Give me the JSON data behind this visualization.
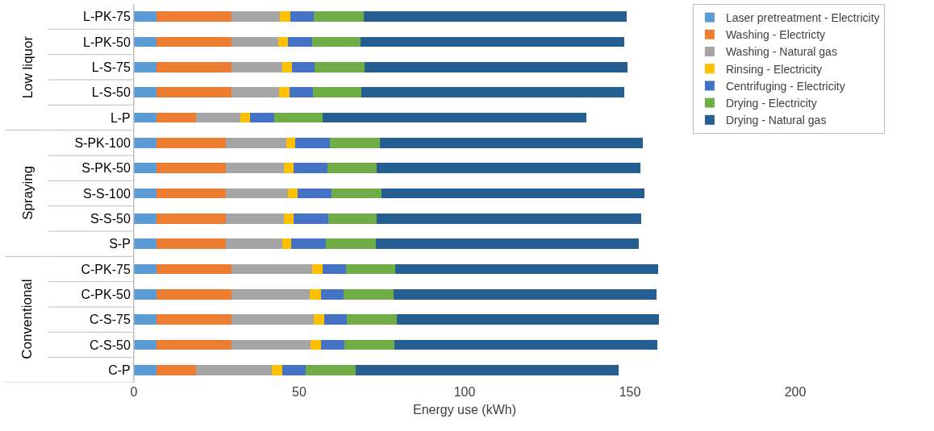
{
  "chart_data": {
    "type": "bar",
    "orientation": "horizontal",
    "stacked": true,
    "categories": [
      "L-PK-75",
      "L-PK-50",
      "L-S-75",
      "L-S-50",
      "L-P",
      "S-PK-100",
      "S-PK-50",
      "S-S-100",
      "S-S-50",
      "S-P",
      "C-PK-75",
      "C-PK-50",
      "C-S-75",
      "C-S-50",
      "C-P"
    ],
    "series": [
      {
        "name": "Laser pretreatment - Electricity",
        "color": "#5b9bd5",
        "values": [
          6.8,
          6.8,
          6.8,
          6.8,
          6.8,
          6.8,
          6.8,
          6.8,
          6.8,
          6.8,
          6.8,
          6.8,
          6.8,
          6.8,
          6.8
        ]
      },
      {
        "name": "Washing - Electricty",
        "color": "#ed7d31",
        "values": [
          22.6,
          22.6,
          22.6,
          22.6,
          12.0,
          21.0,
          21.0,
          21.0,
          21.0,
          21.0,
          22.6,
          22.6,
          22.6,
          22.6,
          12.0
        ]
      },
      {
        "name": "Washing - Natural gas",
        "color": "#a5a5a5",
        "values": [
          14.7,
          14.2,
          15.4,
          14.4,
          13.3,
          18.3,
          17.6,
          18.9,
          17.6,
          17.0,
          24.4,
          23.8,
          25.1,
          24.1,
          22.9
        ]
      },
      {
        "name": "Rinsing - Electricity",
        "color": "#ffc000",
        "values": [
          3.1,
          3.1,
          3.1,
          3.2,
          3.1,
          2.8,
          2.8,
          2.7,
          2.8,
          2.8,
          3.3,
          3.4,
          3.0,
          3.1,
          3.1
        ]
      },
      {
        "name": "Centrifuging - Electricity",
        "color": "#4472c4",
        "values": [
          7.2,
          7.1,
          6.7,
          7.1,
          7.2,
          10.4,
          10.3,
          10.3,
          10.6,
          10.5,
          7.0,
          6.8,
          6.9,
          7.1,
          7.1
        ]
      },
      {
        "name": "Drying - Electricity",
        "color": "#70ad47",
        "values": [
          15.1,
          14.8,
          15.2,
          14.8,
          14.7,
          15.2,
          15.0,
          15.1,
          14.7,
          15.1,
          15.0,
          15.2,
          15.0,
          15.2,
          15.2
        ]
      },
      {
        "name": "Drying - Natural gas",
        "color": "#255e91",
        "values": [
          79.5,
          79.8,
          79.5,
          79.5,
          79.8,
          79.5,
          79.6,
          79.5,
          79.8,
          79.6,
          79.5,
          79.4,
          79.5,
          79.4,
          79.4
        ]
      }
    ],
    "xlabel": "Energy use (kWh)",
    "xlim": [
      0,
      200
    ],
    "xticks": [
      0,
      50,
      100,
      150,
      200
    ],
    "annotations": [
      "Low liquor",
      "Spraying",
      "Conventional"
    ],
    "legend": "top right"
  }
}
